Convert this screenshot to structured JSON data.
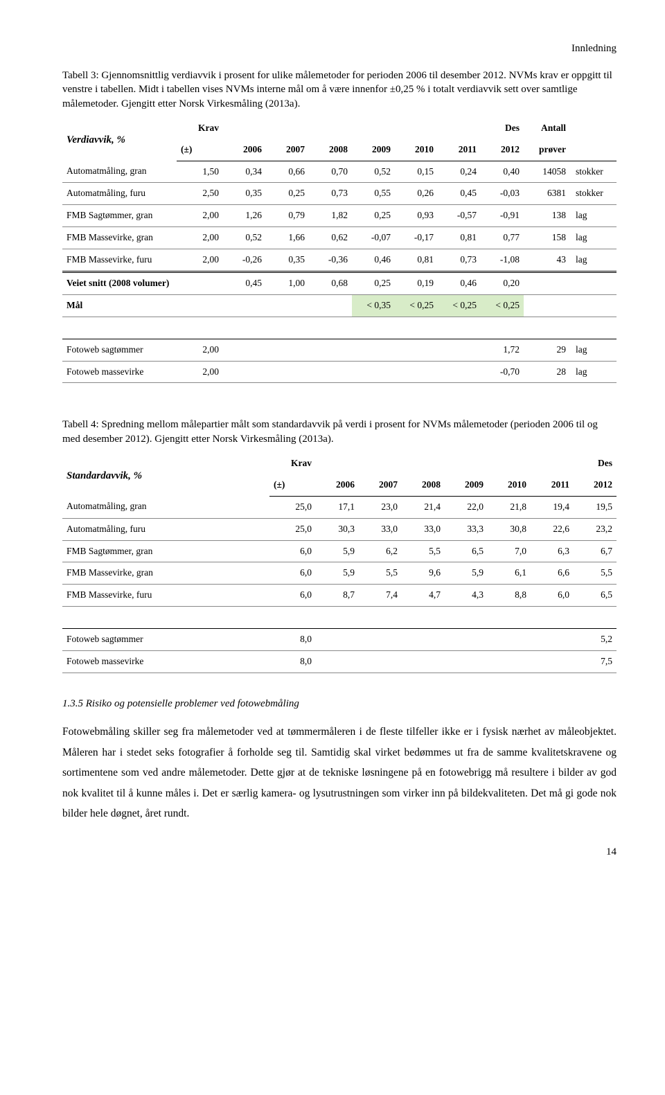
{
  "header": {
    "section": "Innledning"
  },
  "caption3": "Tabell 3: Gjennomsnittlig verdiavvik i prosent for ulike målemetoder for perioden 2006 til desember 2012. NVMs krav er oppgitt til venstre i tabellen. Midt i tabellen vises NVMs interne mål om å være innenfor ±0,25 % i totalt verdiavvik sett over samtlige målemetoder. Gjengitt etter Norsk Virkesmåling (2013a).",
  "table3": {
    "title": "Verdiavvik, %",
    "cols": {
      "krav": "Krav",
      "pm": "(±)",
      "y2006": "2006",
      "y2007": "2007",
      "y2008": "2008",
      "y2009": "2009",
      "y2010": "2010",
      "y2011": "2011",
      "des": "Des",
      "des2": "2012",
      "ant": "Antall",
      "ant2": "prøver"
    },
    "rows": [
      {
        "label": "Automatmåling, gran",
        "krav": "1,50",
        "v": [
          "0,34",
          "0,66",
          "0,70",
          "0,52",
          "0,15",
          "0,24",
          "0,40"
        ],
        "ant": "14058",
        "unit": "stokker"
      },
      {
        "label": "Automatmåling, furu",
        "krav": "2,50",
        "v": [
          "0,35",
          "0,25",
          "0,73",
          "0,55",
          "0,26",
          "0,45",
          "-0,03"
        ],
        "ant": "6381",
        "unit": "stokker"
      },
      {
        "label": "FMB Sagtømmer, gran",
        "krav": "2,00",
        "v": [
          "1,26",
          "0,79",
          "1,82",
          "0,25",
          "0,93",
          "-0,57",
          "-0,91"
        ],
        "ant": "138",
        "unit": "lag"
      },
      {
        "label": "FMB Massevirke, gran",
        "krav": "2,00",
        "v": [
          "0,52",
          "1,66",
          "0,62",
          "-0,07",
          "-0,17",
          "0,81",
          "0,77"
        ],
        "ant": "158",
        "unit": "lag"
      },
      {
        "label": "FMB Massevirke, furu",
        "krav": "2,00",
        "v": [
          "-0,26",
          "0,35",
          "-0,36",
          "0,46",
          "0,81",
          "0,73",
          "-1,08"
        ],
        "ant": "43",
        "unit": "lag"
      }
    ],
    "veiet": {
      "label": "Veiet snitt (2008 volumer)",
      "v": [
        "0,45",
        "1,00",
        "0,68",
        "0,25",
        "0,19",
        "0,46",
        "0,20"
      ]
    },
    "maal": {
      "label": "Mål",
      "v": [
        "< 0,35",
        "< 0,25",
        "< 0,25",
        "< 0,25"
      ]
    },
    "foto": [
      {
        "label": "Fotoweb sagtømmer",
        "krav": "2,00",
        "des": "1,72",
        "ant": "29",
        "unit": "lag"
      },
      {
        "label": "Fotoweb massevirke",
        "krav": "2,00",
        "des": "-0,70",
        "ant": "28",
        "unit": "lag"
      }
    ],
    "highlight_color": "#d8ecc8"
  },
  "caption4": "Tabell 4: Spredning mellom målepartier målt som standardavvik på verdi i prosent for NVMs målemetoder (perioden 2006 til og med desember 2012). Gjengitt etter Norsk Virkesmåling (2013a).",
  "table4": {
    "title": "Standardavvik, %",
    "cols": {
      "krav": "Krav",
      "pm": "(±)",
      "y2006": "2006",
      "y2007": "2007",
      "y2008": "2008",
      "y2009": "2009",
      "y2010": "2010",
      "y2011": "2011",
      "des": "Des",
      "des2": "2012"
    },
    "rows": [
      {
        "label": "Automatmåling, gran",
        "krav": "25,0",
        "v": [
          "17,1",
          "23,0",
          "21,4",
          "22,0",
          "21,8",
          "19,4",
          "19,5"
        ]
      },
      {
        "label": "Automatmåling, furu",
        "krav": "25,0",
        "v": [
          "30,3",
          "33,0",
          "33,0",
          "33,3",
          "30,8",
          "22,6",
          "23,2"
        ]
      },
      {
        "label": "FMB Sagtømmer, gran",
        "krav": "6,0",
        "v": [
          "5,9",
          "6,2",
          "5,5",
          "6,5",
          "7,0",
          "6,3",
          "6,7"
        ]
      },
      {
        "label": "FMB Massevirke, gran",
        "krav": "6,0",
        "v": [
          "5,9",
          "5,5",
          "9,6",
          "5,9",
          "6,1",
          "6,6",
          "5,5"
        ]
      },
      {
        "label": "FMB Massevirke, furu",
        "krav": "6,0",
        "v": [
          "8,7",
          "7,4",
          "4,7",
          "4,3",
          "8,8",
          "6,0",
          "6,5"
        ]
      }
    ],
    "foto": [
      {
        "label": "Fotoweb sagtømmer",
        "krav": "8,0",
        "des": "5,2"
      },
      {
        "label": "Fotoweb massevirke",
        "krav": "8,0",
        "des": "7,5"
      }
    ]
  },
  "subheading": "1.3.5    Risiko og potensielle problemer ved fotowebmåling",
  "body": "Fotowebmåling skiller seg fra målemetoder ved at tømmermåleren i de fleste tilfeller ikke er i fysisk nærhet av måleobjektet. Måleren har i stedet seks fotografier å forholde seg til. Samtidig skal virket bedømmes ut fra de samme kvalitetskravene og sortimentene som ved andre målemetoder. Dette gjør at de tekniske løsningene på en fotowebrigg må resultere i bilder av god nok kvalitet til å kunne måles i. Det er særlig kamera- og lysutrustningen som virker inn på bildekvaliteten. Det må gi gode nok bilder hele døgnet, året rundt.",
  "page_number": "14"
}
